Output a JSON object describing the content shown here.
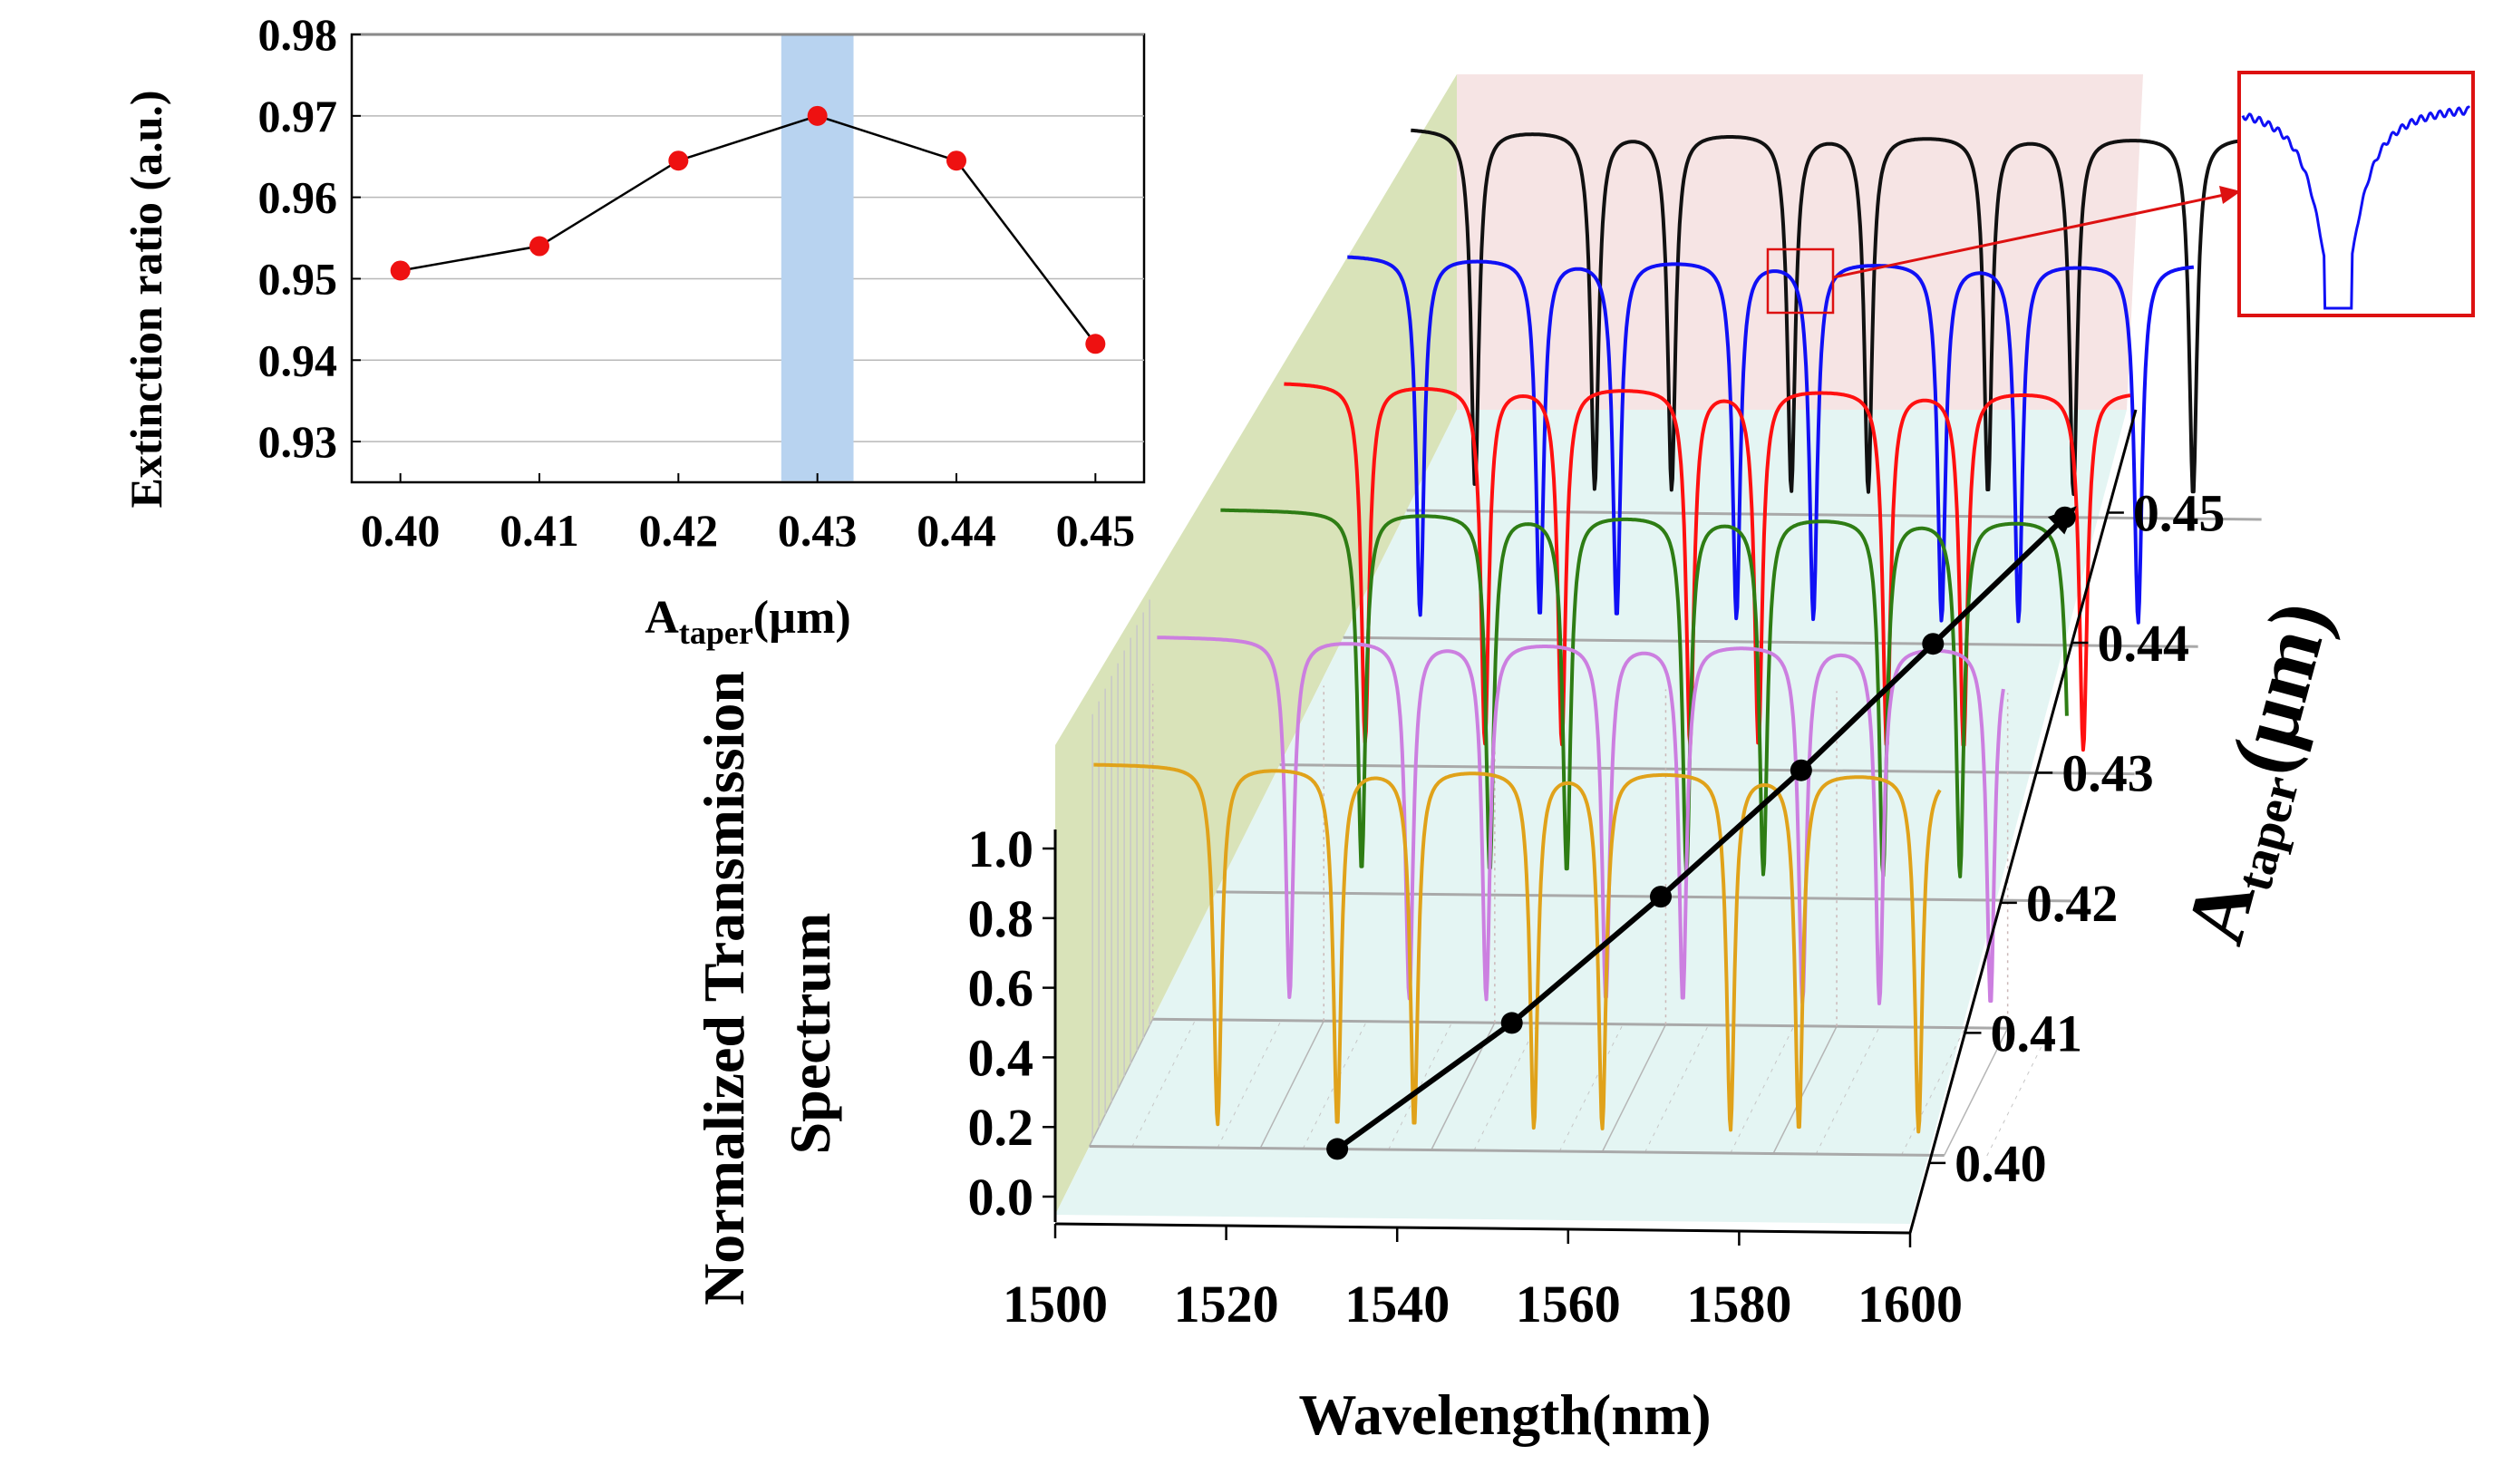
{
  "chart_data": [
    {
      "type": "line",
      "title": "",
      "xlabel": "A",
      "xlabel_sub": "taper",
      "xlabel_unit": "(µm)",
      "ylabel": "Extinction ratio (a.u.)",
      "x": [
        0.4,
        0.41,
        0.42,
        0.43,
        0.44,
        0.45
      ],
      "values": [
        0.951,
        0.954,
        0.9645,
        0.97,
        0.9645,
        0.942
      ],
      "xticks": [
        "0.40",
        "0.41",
        "0.42",
        "0.43",
        "0.44",
        "0.45"
      ],
      "yticks": [
        "0.98",
        "0.97",
        "0.96",
        "0.95",
        "0.94",
        "0.93"
      ],
      "ytick_values": [
        0.98,
        0.97,
        0.96,
        0.95,
        0.94,
        0.93
      ],
      "xlim": [
        0.3965,
        0.4535
      ],
      "ylim": [
        0.925,
        0.98
      ],
      "highlight_x": 0.43,
      "highlight_width": 0.0026,
      "colors": {
        "marker": "#ee1111",
        "line": "#000000",
        "highlight": "#b8d3f0"
      }
    },
    {
      "type": "line",
      "title": "",
      "xlabel": "Wavelength(nm)",
      "ylabel_line1": "Normalized Transmission",
      "ylabel_line2": "Spectrum",
      "zlabel": "A",
      "zlabel_sub": "taper",
      "zlabel_unit": "(µm)",
      "xticks": [
        "1500",
        "1520",
        "1540",
        "1560",
        "1580",
        "1600"
      ],
      "xtick_values": [
        1500,
        1520,
        1540,
        1560,
        1580,
        1600
      ],
      "yticks": [
        "1.0",
        "0.8",
        "0.6",
        "0.4",
        "0.2",
        "0.0"
      ],
      "ytick_values": [
        1.0,
        0.8,
        0.6,
        0.4,
        0.2,
        0.0
      ],
      "zticks": [
        "0.40",
        "0.41",
        "0.42",
        "0.43",
        "0.44",
        "0.45"
      ],
      "xlim": [
        1500,
        1600
      ],
      "ylim": [
        0,
        1
      ],
      "series": [
        {
          "name": "0.40",
          "color": "#e0a21a",
          "dips": [
            1515,
            1529,
            1538,
            1552,
            1560,
            1575,
            1583,
            1597
          ]
        },
        {
          "name": "0.41",
          "color": "#cc7fe0",
          "dips": [
            1516,
            1530,
            1539,
            1553,
            1562,
            1576,
            1585,
            1598
          ]
        },
        {
          "name": "0.42",
          "color": "#2e7d14",
          "dips": [
            1517,
            1532,
            1541,
            1555,
            1564,
            1578,
            1587,
            1600
          ]
        },
        {
          "name": "0.43",
          "color": "#ff1010",
          "dips": [
            1510,
            1524,
            1533,
            1548,
            1556,
            1571,
            1580,
            1594
          ]
        },
        {
          "name": "0.44",
          "color": "#1010f5",
          "dips": [
            1509,
            1523,
            1532,
            1546,
            1555,
            1570,
            1579,
            1593
          ]
        },
        {
          "name": "0.45",
          "color": "#111111",
          "dips": [
            1508,
            1522,
            1531,
            1545,
            1554,
            1568,
            1578,
            1592
          ]
        }
      ],
      "trend_points": [
        {
          "z": "0.40",
          "x": 1529
        },
        {
          "z": "0.41",
          "x": 1542
        },
        {
          "z": "0.42",
          "x": 1552
        },
        {
          "z": "0.43",
          "x": 1561
        },
        {
          "z": "0.44",
          "x": 1569
        },
        {
          "z": "0.45",
          "x": 1577
        }
      ],
      "inset": {
        "series": "0.44",
        "color": "#1010f5",
        "box_color": "#dd1111"
      },
      "colors": {
        "floor": "#e4f5f3",
        "side_wall": "#d9e3b9",
        "back_wall": "#f6e4e4",
        "trend": "#000000"
      }
    }
  ]
}
